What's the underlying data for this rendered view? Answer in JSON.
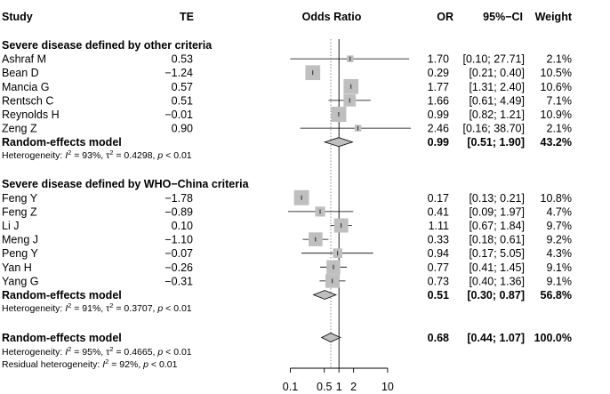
{
  "headers": {
    "study": "Study",
    "te": "TE",
    "odds_ratio": "Odds Ratio",
    "or": "OR",
    "ci": "95%−CI",
    "weight": "Weight"
  },
  "chart_data": {
    "type": "forest",
    "x_scale": "log",
    "x_ticks": [
      "0.1",
      "0.5",
      "1",
      "2",
      "10"
    ],
    "x_tick_values": [
      0.1,
      0.5,
      1,
      2,
      10
    ],
    "xlim": [
      0.05,
      30
    ],
    "reference_line": 1,
    "random_effects_reference": 0.68,
    "groups": [
      {
        "title": "Severe disease defined by other criteria",
        "studies": [
          {
            "name": "Ashraf M",
            "te": "0.53",
            "or": "1.70",
            "ci": "[0.10; 27.71]",
            "weight": "2.1%",
            "or_value": 1.7,
            "lower": 0.1,
            "upper": 27.71,
            "weight_value": 2.1
          },
          {
            "name": "Bean D",
            "te": "−1.24",
            "or": "0.29",
            "ci": "[0.21; 0.40]",
            "weight": "10.5%",
            "or_value": 0.29,
            "lower": 0.21,
            "upper": 0.4,
            "weight_value": 10.5
          },
          {
            "name": "Mancia G",
            "te": "0.57",
            "or": "1.77",
            "ci": "[1.31; 2.40]",
            "weight": "10.6%",
            "or_value": 1.77,
            "lower": 1.31,
            "upper": 2.4,
            "weight_value": 10.6
          },
          {
            "name": "Rentsch C",
            "te": "0.51",
            "or": "1.66",
            "ci": "[0.61; 4.49]",
            "weight": "7.1%",
            "or_value": 1.66,
            "lower": 0.61,
            "upper": 4.49,
            "weight_value": 7.1
          },
          {
            "name": "Reynolds H",
            "te": "−0.01",
            "or": "0.99",
            "ci": "[0.82; 1.21]",
            "weight": "10.9%",
            "or_value": 0.99,
            "lower": 0.82,
            "upper": 1.21,
            "weight_value": 10.9
          },
          {
            "name": "Zeng Z",
            "te": "0.90",
            "or": "2.46",
            "ci": "[0.16; 38.70]",
            "weight": "2.1%",
            "or_value": 2.46,
            "lower": 0.16,
            "upper": 38.7,
            "weight_value": 2.1
          }
        ],
        "pooled": {
          "label": "Random-effects model",
          "or": "0.99",
          "ci": "[0.51; 1.90]",
          "weight": "43.2%",
          "or_value": 0.99,
          "lower": 0.51,
          "upper": 1.9
        },
        "heterogeneity": {
          "prefix": "Heterogeneity: ",
          "i2": "93%",
          "tau2": "0.4298",
          "p": "< 0.01"
        }
      },
      {
        "title": "Severe disease defined by WHO−China criteria",
        "studies": [
          {
            "name": "Feng Y",
            "te": "−1.78",
            "or": "0.17",
            "ci": "[0.13; 0.21]",
            "weight": "10.8%",
            "or_value": 0.17,
            "lower": 0.13,
            "upper": 0.21,
            "weight_value": 10.8
          },
          {
            "name": "Feng Z",
            "te": "−0.89",
            "or": "0.41",
            "ci": "[0.09; 1.97]",
            "weight": "4.7%",
            "or_value": 0.41,
            "lower": 0.09,
            "upper": 1.97,
            "weight_value": 4.7
          },
          {
            "name": "Li J",
            "te": "0.10",
            "or": "1.11",
            "ci": "[0.67; 1.84]",
            "weight": "9.7%",
            "or_value": 1.11,
            "lower": 0.67,
            "upper": 1.84,
            "weight_value": 9.7
          },
          {
            "name": "Meng J",
            "te": "−1.10",
            "or": "0.33",
            "ci": "[0.18; 0.61]",
            "weight": "9.2%",
            "or_value": 0.33,
            "lower": 0.18,
            "upper": 0.61,
            "weight_value": 9.2
          },
          {
            "name": "Peng Y",
            "te": "−0.07",
            "or": "0.94",
            "ci": "[0.17; 5.05]",
            "weight": "4.3%",
            "or_value": 0.94,
            "lower": 0.17,
            "upper": 5.05,
            "weight_value": 4.3
          },
          {
            "name": "Yan H",
            "te": "−0.26",
            "or": "0.77",
            "ci": "[0.41; 1.45]",
            "weight": "9.1%",
            "or_value": 0.77,
            "lower": 0.41,
            "upper": 1.45,
            "weight_value": 9.1
          },
          {
            "name": "Yang G",
            "te": "−0.31",
            "or": "0.73",
            "ci": "[0.40; 1.36]",
            "weight": "9.1%",
            "or_value": 0.73,
            "lower": 0.4,
            "upper": 1.36,
            "weight_value": 9.1
          }
        ],
        "pooled": {
          "label": "Random-effects model",
          "or": "0.51",
          "ci": "[0.30; 0.87]",
          "weight": "56.8%",
          "or_value": 0.51,
          "lower": 0.3,
          "upper": 0.87
        },
        "heterogeneity": {
          "prefix": "Heterogeneity: ",
          "i2": "91%",
          "tau2": "0.3707",
          "p": "< 0.01"
        }
      }
    ],
    "overall": {
      "label": "Random-effects model",
      "or": "0.68",
      "ci": "[0.44; 1.07]",
      "weight": "100.0%",
      "or_value": 0.68,
      "lower": 0.44,
      "upper": 1.07,
      "heterogeneity": {
        "prefix": "Heterogeneity: ",
        "i2": "95%",
        "tau2": "0.4665",
        "p": "< 0.01"
      },
      "residual_heterogeneity": {
        "prefix": "Residual heterogeneity: ",
        "i2": "92%",
        "p": "< 0.01"
      }
    }
  },
  "colors": {
    "square": "#bfbfbf",
    "diamond": "#bfbfbf",
    "line": "#000000",
    "dotted_line": "#808080"
  }
}
